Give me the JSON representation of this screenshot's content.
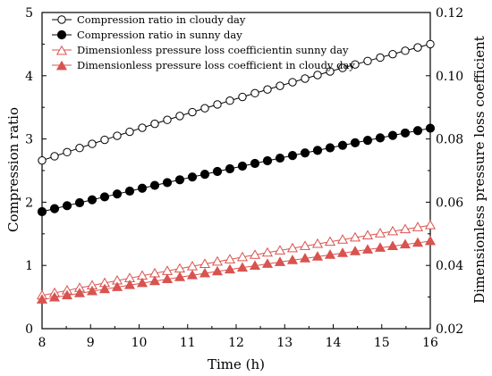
{
  "chart_data": {
    "type": "line",
    "xlabel": "Time (h)",
    "ylabel_left": "Compression ratio",
    "ylabel_right": "Dimensionless pressure loss coefficient",
    "xlim": [
      8,
      16
    ],
    "ylim_left": [
      0,
      5
    ],
    "ylim_right": [
      0.02,
      0.12
    ],
    "x_ticks": [
      "8",
      "9",
      "10",
      "11",
      "12",
      "13",
      "14",
      "15",
      "16"
    ],
    "y_left_ticks": [
      "0",
      "1",
      "2",
      "3",
      "4",
      "5"
    ],
    "y_right_ticks": [
      "0.02",
      "0.04",
      "0.06",
      "0.08",
      "0.10",
      "0.12"
    ],
    "grid": false,
    "legend_position": "top-left",
    "series": [
      {
        "name": "Compression ratio in cloudy day",
        "axis": "left",
        "marker": "circle-open",
        "color": "#000000",
        "x_start": 8,
        "x_end": 16,
        "points": 32,
        "y_start": 2.66,
        "y_end": 4.5
      },
      {
        "name": "Compression ratio in sunny day",
        "axis": "left",
        "marker": "circle-filled",
        "color": "#000000",
        "x_start": 8,
        "x_end": 16,
        "points": 32,
        "y_start": 1.85,
        "y_end": 3.17
      },
      {
        "name": "Dimensionless pressure loss coefficientin sunny day",
        "axis": "right",
        "marker": "triangle-open",
        "color": "#d9534f",
        "x_start": 8,
        "x_end": 16,
        "points": 32,
        "y_start": 0.0305,
        "y_end": 0.0527
      },
      {
        "name": "Dimensionless pressure loss coefficient in cloudy day",
        "axis": "right",
        "marker": "triangle-filled",
        "color": "#d9534f",
        "x_start": 8,
        "x_end": 16,
        "points": 32,
        "y_start": 0.0292,
        "y_end": 0.0477
      }
    ]
  }
}
